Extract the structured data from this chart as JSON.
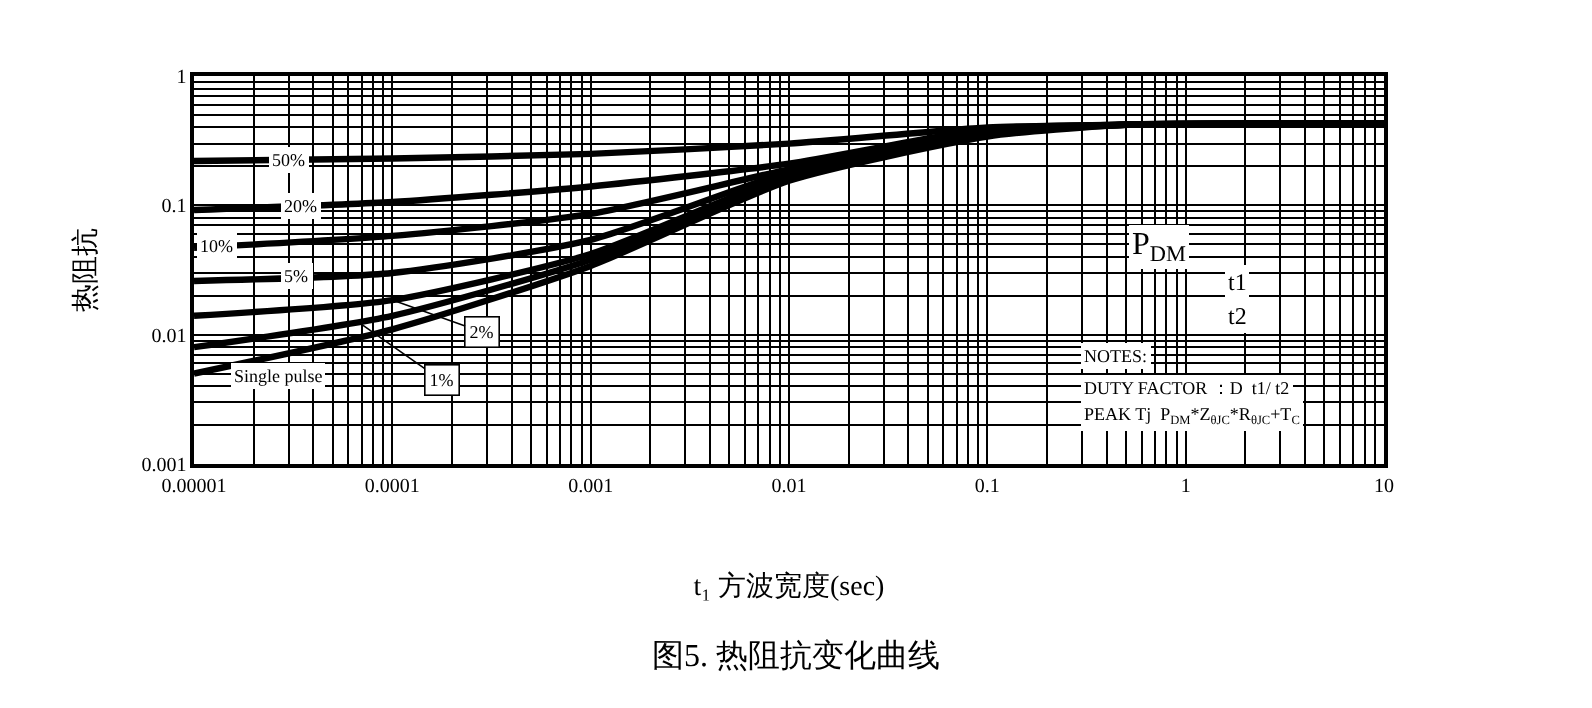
{
  "chart_data": {
    "type": "line",
    "title": "图5. 热阻抗变化曲线",
    "xlabel": "t₁ 方波宽度(sec)",
    "ylabel": "热阻抗",
    "log": "xy",
    "grid": true,
    "marker": "none",
    "line_style": "solid",
    "x": [
      1e-05,
      0.0001,
      0.001,
      0.01,
      0.1,
      0.5,
      10
    ],
    "xlim": [
      1e-05,
      10
    ],
    "xticks": [
      {
        "value": 1e-05,
        "label": "0.00001"
      },
      {
        "value": 0.0001,
        "label": "0.0001"
      },
      {
        "value": 0.001,
        "label": "0.001"
      },
      {
        "value": 0.01,
        "label": "0.01"
      },
      {
        "value": 0.1,
        "label": "0.1"
      },
      {
        "value": 1,
        "label": "1"
      },
      {
        "value": 10,
        "label": "10"
      }
    ],
    "ylim": [
      0.001,
      1
    ],
    "yticks": [
      {
        "value": 0.001,
        "label": "0.001"
      },
      {
        "value": 0.01,
        "label": "0.01"
      },
      {
        "value": 0.1,
        "label": "0.1"
      },
      {
        "value": 1,
        "label": "1"
      }
    ],
    "series": [
      {
        "color": "#000000",
        "values": [
          0.22,
          0.23,
          0.25,
          0.3,
          0.4,
          0.42,
          0.43
        ]
      },
      {
        "color": "#000000",
        "values": [
          0.092,
          0.106,
          0.14,
          0.21,
          0.39,
          0.42,
          0.43
        ]
      },
      {
        "color": "#000000",
        "values": [
          0.047,
          0.058,
          0.086,
          0.19,
          0.38,
          0.42,
          0.43
        ]
      },
      {
        "color": "#000000",
        "values": [
          0.026,
          0.03,
          0.054,
          0.18,
          0.37,
          0.42,
          0.43
        ]
      },
      {
        "color": "#000000",
        "values": [
          0.014,
          0.0185,
          0.042,
          0.17,
          0.36,
          0.42,
          0.43
        ]
      },
      {
        "color": "#000000",
        "values": [
          0.008,
          0.014,
          0.038,
          0.16,
          0.35,
          0.42,
          0.43
        ]
      },
      {
        "color": "#000000",
        "values": [
          0.005,
          0.011,
          0.034,
          0.155,
          0.34,
          0.42,
          0.43
        ]
      }
    ],
    "annotations": [
      {
        "text": "50%",
        "x": 3e-05,
        "y": 0.225
      },
      {
        "text": "20%",
        "x": 3.5e-05,
        "y": 0.1
      },
      {
        "text": "10%",
        "x": 1.3e-05,
        "y": 0.048
      },
      {
        "text": "5%",
        "x": 3.3e-05,
        "y": 0.028
      },
      {
        "text": "2%",
        "x": 0.0001,
        "y": 0.0185
      },
      {
        "text": "1%",
        "x": 7e-05,
        "y": 0.012
      },
      "Single pulse",
      "P$_{DM}$",
      "t1",
      "t2",
      "NOTES:",
      "DUTY FACTOR ：D  t1/ t2",
      "PEAK Tj  P$_{DM}$*Z$_{θJC}$*R$_{θJC}$+T$_{C}$"
    ]
  }
}
